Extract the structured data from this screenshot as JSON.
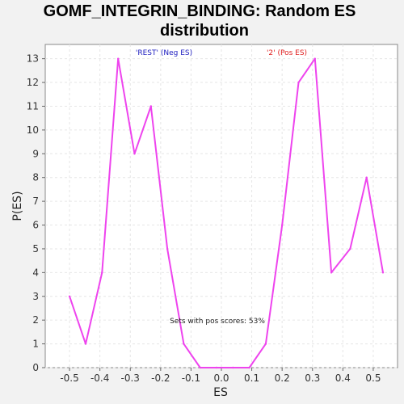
{
  "chart_data": {
    "type": "line",
    "title_lines": [
      "GOMF_INTEGRIN_BINDING: Random ES",
      "distribution"
    ],
    "xlabel": "ES",
    "ylabel": "P(ES)",
    "xlim": [
      -0.58,
      0.58
    ],
    "ylim": [
      0,
      13.6
    ],
    "x_ticks": [
      -0.5,
      -0.4,
      -0.3,
      -0.2,
      -0.1,
      0.0,
      0.1,
      0.2,
      0.3,
      0.4,
      0.5
    ],
    "x_tick_labels": [
      "-0.5",
      "-0.4",
      "-0.3",
      "-0.2",
      "-0.1",
      "0.0",
      "0.1",
      "0.2",
      "0.3",
      "0.4",
      "0.5"
    ],
    "y_ticks": [
      0,
      1,
      2,
      3,
      4,
      5,
      6,
      7,
      8,
      9,
      10,
      11,
      12,
      13
    ],
    "y_tick_labels": [
      "0",
      "1",
      "2",
      "3",
      "4",
      "5",
      "6",
      "7",
      "8",
      "9",
      "10",
      "11",
      "12",
      "13"
    ],
    "grid": true,
    "legend": [
      {
        "label": "'REST' (Neg ES)",
        "color": "#2020c0"
      },
      {
        "label": "'2' (Pos ES)",
        "color": "#e02020"
      }
    ],
    "annotation": "Sets with pos scores: 53%",
    "series": [
      {
        "name": "Random ES distribution",
        "color": "#ee44ee",
        "x": [
          -0.5,
          -0.447,
          -0.393,
          -0.34,
          -0.286,
          -0.232,
          -0.178,
          -0.124,
          -0.07,
          -0.016,
          0.038,
          0.092,
          0.146,
          0.2,
          0.254,
          0.308,
          0.362,
          0.424,
          0.478,
          0.532
        ],
        "y": [
          3,
          1,
          4,
          13,
          9,
          11,
          5,
          1,
          0,
          0,
          0,
          0,
          1,
          6,
          12,
          13,
          4,
          5,
          8,
          4
        ]
      }
    ]
  }
}
